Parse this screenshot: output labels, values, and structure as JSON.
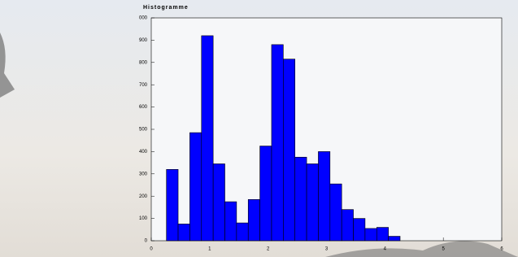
{
  "chart_data": {
    "type": "histogram",
    "title": "Histogramme",
    "bins": [
      0.26,
      0.46,
      0.66,
      0.86,
      1.06,
      1.26,
      1.46,
      1.66,
      1.86,
      2.06,
      2.26,
      2.46,
      2.66,
      2.86,
      3.06,
      3.26,
      3.46,
      3.66,
      3.86,
      4.06,
      4.26
    ],
    "counts": [
      320,
      75,
      485,
      920,
      345,
      175,
      80,
      185,
      425,
      880,
      815,
      375,
      345,
      400,
      255,
      140,
      100,
      55,
      60,
      20
    ],
    "color": "#0000ff",
    "xlim": [
      0,
      6
    ],
    "xticks": [
      0,
      1,
      2,
      3,
      4,
      5,
      6
    ],
    "ylim": [
      0,
      1000
    ],
    "yticks": [
      0,
      100,
      200,
      300,
      400,
      500,
      600,
      700,
      800,
      900,
      {
        "value": 1000,
        "label": "000"
      }
    ]
  }
}
